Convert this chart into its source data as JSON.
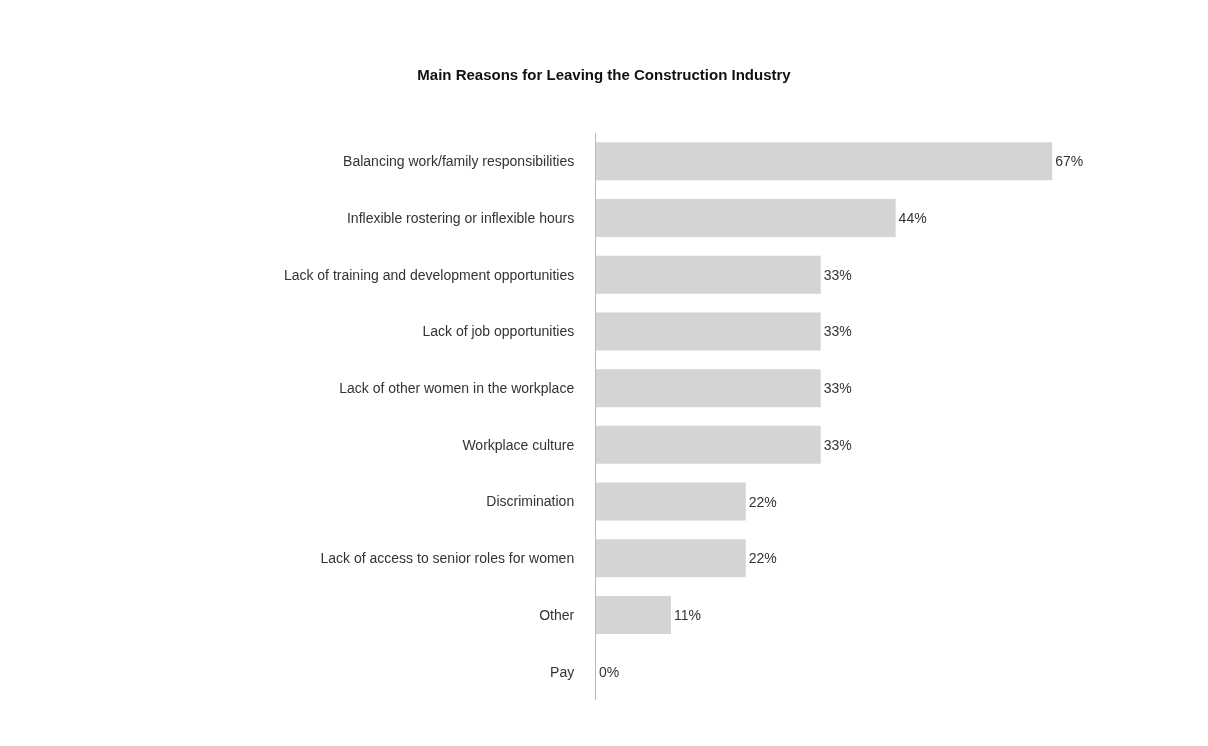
{
  "chart_data": {
    "type": "bar",
    "orientation": "horizontal",
    "title": "Main Reasons for Leaving the Construction Industry",
    "categories": [
      "Balancing work/family responsibilities",
      "Inflexible rostering or inflexible hours",
      "Lack of training and development opportunities",
      "Lack of job opportunities",
      "Lack of other women in the workplace",
      "Workplace culture",
      "Discrimination",
      "Lack of access to senior roles for women",
      "Other",
      "Pay"
    ],
    "values": [
      67,
      44,
      33,
      33,
      33,
      33,
      22,
      22,
      11,
      0
    ],
    "value_labels": [
      "67%",
      "44%",
      "33%",
      "33%",
      "33%",
      "33%",
      "22%",
      "22%",
      "11%",
      "0%"
    ],
    "color": "#d4d4d4",
    "legend": false
  }
}
